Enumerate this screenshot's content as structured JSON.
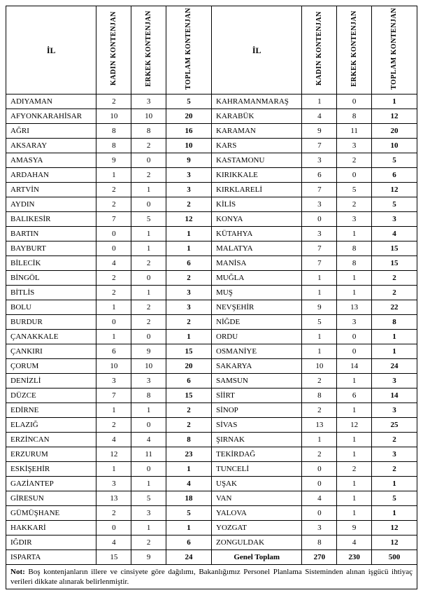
{
  "headers": {
    "il": "İL",
    "kadin": "KADIN KONTENJAN",
    "erkek": "ERKEK KONTENJAN",
    "toplam": "TOPLAM KONTENJAN"
  },
  "left": [
    {
      "il": "ADIYAMAN",
      "k": "2",
      "e": "3",
      "t": "5"
    },
    {
      "il": "AFYONKARAHİSAR",
      "k": "10",
      "e": "10",
      "t": "20"
    },
    {
      "il": "AĞRI",
      "k": "8",
      "e": "8",
      "t": "16"
    },
    {
      "il": "AKSARAY",
      "k": "8",
      "e": "2",
      "t": "10"
    },
    {
      "il": "AMASYA",
      "k": "9",
      "e": "0",
      "t": "9"
    },
    {
      "il": "ARDAHAN",
      "k": "1",
      "e": "2",
      "t": "3"
    },
    {
      "il": "ARTVİN",
      "k": "2",
      "e": "1",
      "t": "3"
    },
    {
      "il": "AYDIN",
      "k": "2",
      "e": "0",
      "t": "2"
    },
    {
      "il": "BALIKESİR",
      "k": "7",
      "e": "5",
      "t": "12"
    },
    {
      "il": "BARTIN",
      "k": "0",
      "e": "1",
      "t": "1"
    },
    {
      "il": "BAYBURT",
      "k": "0",
      "e": "1",
      "t": "1"
    },
    {
      "il": "BİLECİK",
      "k": "4",
      "e": "2",
      "t": "6"
    },
    {
      "il": "BİNGÖL",
      "k": "2",
      "e": "0",
      "t": "2"
    },
    {
      "il": "BİTLİS",
      "k": "2",
      "e": "1",
      "t": "3"
    },
    {
      "il": "BOLU",
      "k": "1",
      "e": "2",
      "t": "3"
    },
    {
      "il": "BURDUR",
      "k": "0",
      "e": "2",
      "t": "2"
    },
    {
      "il": "ÇANAKKALE",
      "k": "1",
      "e": "0",
      "t": "1"
    },
    {
      "il": "ÇANKIRI",
      "k": "6",
      "e": "9",
      "t": "15"
    },
    {
      "il": "ÇORUM",
      "k": "10",
      "e": "10",
      "t": "20"
    },
    {
      "il": "DENİZLİ",
      "k": "3",
      "e": "3",
      "t": "6"
    },
    {
      "il": "DÜZCE",
      "k": "7",
      "e": "8",
      "t": "15"
    },
    {
      "il": "EDİRNE",
      "k": "1",
      "e": "1",
      "t": "2"
    },
    {
      "il": "ELAZIĞ",
      "k": "2",
      "e": "0",
      "t": "2"
    },
    {
      "il": "ERZİNCAN",
      "k": "4",
      "e": "4",
      "t": "8"
    },
    {
      "il": "ERZURUM",
      "k": "12",
      "e": "11",
      "t": "23"
    },
    {
      "il": "ESKİŞEHİR",
      "k": "1",
      "e": "0",
      "t": "1"
    },
    {
      "il": "GAZİANTEP",
      "k": "3",
      "e": "1",
      "t": "4"
    },
    {
      "il": "GİRESUN",
      "k": "13",
      "e": "5",
      "t": "18"
    },
    {
      "il": "GÜMÜŞHANE",
      "k": "2",
      "e": "3",
      "t": "5"
    },
    {
      "il": "HAKKARİ",
      "k": "0",
      "e": "1",
      "t": "1"
    },
    {
      "il": "IĞDIR",
      "k": "4",
      "e": "2",
      "t": "6"
    },
    {
      "il": "ISPARTA",
      "k": "15",
      "e": "9",
      "t": "24"
    }
  ],
  "right": [
    {
      "il": "KAHRAMANMARAŞ",
      "k": "1",
      "e": "0",
      "t": "1"
    },
    {
      "il": "KARABÜK",
      "k": "4",
      "e": "8",
      "t": "12"
    },
    {
      "il": "KARAMAN",
      "k": "9",
      "e": "11",
      "t": "20"
    },
    {
      "il": "KARS",
      "k": "7",
      "e": "3",
      "t": "10"
    },
    {
      "il": "KASTAMONU",
      "k": "3",
      "e": "2",
      "t": "5"
    },
    {
      "il": "KIRIKKALE",
      "k": "6",
      "e": "0",
      "t": "6"
    },
    {
      "il": "KIRKLARELİ",
      "k": "7",
      "e": "5",
      "t": "12"
    },
    {
      "il": "KİLİS",
      "k": "3",
      "e": "2",
      "t": "5"
    },
    {
      "il": "KONYA",
      "k": "0",
      "e": "3",
      "t": "3"
    },
    {
      "il": "KÜTAHYA",
      "k": "3",
      "e": "1",
      "t": "4"
    },
    {
      "il": "MALATYA",
      "k": "7",
      "e": "8",
      "t": "15"
    },
    {
      "il": "MANİSA",
      "k": "7",
      "e": "8",
      "t": "15"
    },
    {
      "il": "MUĞLA",
      "k": "1",
      "e": "1",
      "t": "2"
    },
    {
      "il": "MUŞ",
      "k": "1",
      "e": "1",
      "t": "2"
    },
    {
      "il": "NEVŞEHİR",
      "k": "9",
      "e": "13",
      "t": "22"
    },
    {
      "il": "NİĞDE",
      "k": "5",
      "e": "3",
      "t": "8"
    },
    {
      "il": "ORDU",
      "k": "1",
      "e": "0",
      "t": "1"
    },
    {
      "il": "OSMANİYE",
      "k": "1",
      "e": "0",
      "t": "1"
    },
    {
      "il": "SAKARYA",
      "k": "10",
      "e": "14",
      "t": "24"
    },
    {
      "il": "SAMSUN",
      "k": "2",
      "e": "1",
      "t": "3"
    },
    {
      "il": "SİİRT",
      "k": "8",
      "e": "6",
      "t": "14"
    },
    {
      "il": "SİNOP",
      "k": "2",
      "e": "1",
      "t": "3"
    },
    {
      "il": "SİVAS",
      "k": "13",
      "e": "12",
      "t": "25"
    },
    {
      "il": "ŞIRNAK",
      "k": "1",
      "e": "1",
      "t": "2"
    },
    {
      "il": "TEKİRDAĞ",
      "k": "2",
      "e": "1",
      "t": "3"
    },
    {
      "il": "TUNCELİ",
      "k": "0",
      "e": "2",
      "t": "2"
    },
    {
      "il": "UŞAK",
      "k": "0",
      "e": "1",
      "t": "1"
    },
    {
      "il": "VAN",
      "k": "4",
      "e": "1",
      "t": "5"
    },
    {
      "il": "YALOVA",
      "k": "0",
      "e": "1",
      "t": "1"
    },
    {
      "il": "YOZGAT",
      "k": "3",
      "e": "9",
      "t": "12"
    },
    {
      "il": "ZONGULDAK",
      "k": "8",
      "e": "4",
      "t": "12"
    }
  ],
  "grand": {
    "label": "Genel Toplam",
    "k": "270",
    "e": "230",
    "t": "500"
  },
  "note_label": "Not:",
  "note_text": "Boş kontenjanların illere ve cinsiyete göre dağılımı, Bakanlığımız Personel Planlama Sisteminden alınan işgücü ihtiyaç verileri dikkate alınarak belirlenmiştir."
}
